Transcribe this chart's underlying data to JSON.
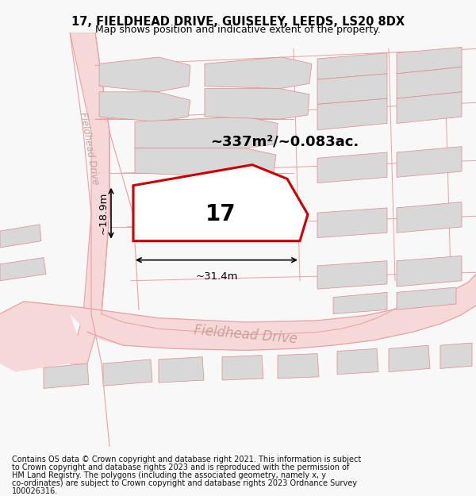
{
  "title": "17, FIELDHEAD DRIVE, GUISELEY, LEEDS, LS20 8DX",
  "subtitle": "Map shows position and indicative extent of the property.",
  "footer_line1": "Contains OS data © Crown copyright and database right 2021. This information is subject",
  "footer_line2": "to Crown copyright and database rights 2023 and is reproduced with the permission of",
  "footer_line3": "HM Land Registry. The polygons (including the associated geometry, namely x, y",
  "footer_line4": "co-ordinates) are subject to Crown copyright and database rights 2023 Ordnance Survey",
  "footer_line5": "100026316.",
  "map_bg": "#ffffff",
  "plot_color": "#cc0000",
  "road_fill": "#f7d8d8",
  "road_edge": "#e8a0a0",
  "bld_fill": "#d8d8d8",
  "bld_edge": "#e08888",
  "plot_line": "#e8a0a0",
  "label_17": "17",
  "area_label": "~337m²/~0.083ac.",
  "dim_width": "~31.4m",
  "dim_height": "~18.9m",
  "road_label": "Fieldhead Drive",
  "road_label2": "Fieldhead Drive",
  "title_fontsize": 10.5,
  "subtitle_fontsize": 9,
  "footer_fontsize": 7
}
